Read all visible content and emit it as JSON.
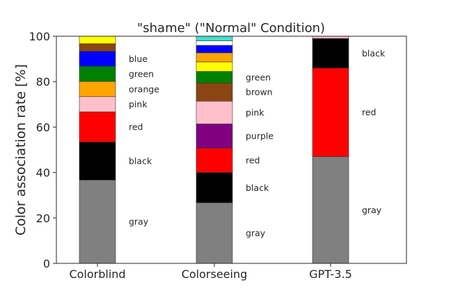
{
  "chart_data": {
    "type": "bar",
    "stacked": true,
    "title": "\"shame\" (\"Normal\" Condition)",
    "xlabel": "",
    "ylabel": "Color association rate [%]",
    "ylim": [
      0,
      100
    ],
    "yticks": [
      0,
      20,
      40,
      60,
      80,
      100
    ],
    "grid": false,
    "legend": "none",
    "categories": [
      "Colorblind",
      "Colorseeing",
      "GPT-3.5"
    ],
    "bars": [
      {
        "category": "Colorblind",
        "segments": [
          {
            "label": "gray",
            "value": 36.7,
            "color": "#808080",
            "show_label": true
          },
          {
            "label": "black",
            "value": 16.7,
            "color": "#000000",
            "show_label": true
          },
          {
            "label": "red",
            "value": 13.3,
            "color": "#ff0000",
            "show_label": true
          },
          {
            "label": "pink",
            "value": 6.7,
            "color": "#ffc0cb",
            "show_label": true
          },
          {
            "label": "orange",
            "value": 6.7,
            "color": "#ffa500",
            "show_label": true
          },
          {
            "label": "green",
            "value": 6.7,
            "color": "#008000",
            "show_label": true
          },
          {
            "label": "blue",
            "value": 6.6,
            "color": "#0000ff",
            "show_label": true
          },
          {
            "label": "brown",
            "value": 3.3,
            "color": "#8b4513",
            "show_label": false
          },
          {
            "label": "yellow",
            "value": 3.3,
            "color": "#ffff00",
            "show_label": false
          }
        ]
      },
      {
        "category": "Colorseeing",
        "segments": [
          {
            "label": "gray",
            "value": 26.7,
            "color": "#808080",
            "show_label": true
          },
          {
            "label": "black",
            "value": 13.3,
            "color": "#000000",
            "show_label": true
          },
          {
            "label": "red",
            "value": 10.8,
            "color": "#ff0000",
            "show_label": true
          },
          {
            "label": "purple",
            "value": 10.6,
            "color": "#800080",
            "show_label": true
          },
          {
            "label": "pink",
            "value": 10.0,
            "color": "#ffc0cb",
            "show_label": true
          },
          {
            "label": "brown",
            "value": 8.0,
            "color": "#8b4513",
            "show_label": true
          },
          {
            "label": "green",
            "value": 5.1,
            "color": "#008000",
            "show_label": true
          },
          {
            "label": "yellow",
            "value": 4.2,
            "color": "#ffff00",
            "show_label": false
          },
          {
            "label": "orange",
            "value": 4.0,
            "color": "#ffa500",
            "show_label": false
          },
          {
            "label": "blue",
            "value": 3.3,
            "color": "#0000ff",
            "show_label": false
          },
          {
            "label": "white",
            "value": 2.0,
            "color": "#ffffff",
            "show_label": false
          },
          {
            "label": "turquoise",
            "value": 2.0,
            "color": "#40e0d0",
            "show_label": false
          }
        ]
      },
      {
        "category": "GPT-3.5",
        "segments": [
          {
            "label": "gray",
            "value": 47.0,
            "color": "#808080",
            "show_label": true
          },
          {
            "label": "red",
            "value": 39.0,
            "color": "#ff0000",
            "show_label": true
          },
          {
            "label": "black",
            "value": 13.0,
            "color": "#000000",
            "show_label": true
          },
          {
            "label": "pink",
            "value": 1.0,
            "color": "#ffc0cb",
            "show_label": false
          }
        ]
      }
    ]
  }
}
